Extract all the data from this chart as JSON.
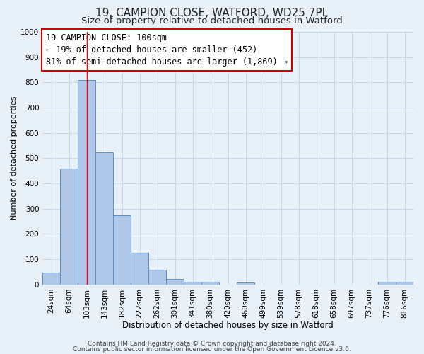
{
  "title1": "19, CAMPION CLOSE, WATFORD, WD25 7PL",
  "title2": "Size of property relative to detached houses in Watford",
  "xlabel": "Distribution of detached houses by size in Watford",
  "ylabel": "Number of detached properties",
  "bin_labels": [
    "24sqm",
    "64sqm",
    "103sqm",
    "143sqm",
    "182sqm",
    "222sqm",
    "262sqm",
    "301sqm",
    "341sqm",
    "380sqm",
    "420sqm",
    "460sqm",
    "499sqm",
    "539sqm",
    "578sqm",
    "618sqm",
    "658sqm",
    "697sqm",
    "737sqm",
    "776sqm",
    "816sqm"
  ],
  "bar_values": [
    47,
    460,
    810,
    525,
    275,
    125,
    58,
    22,
    12,
    10,
    0,
    8,
    0,
    0,
    0,
    0,
    0,
    0,
    0,
    10,
    10
  ],
  "bar_color": "#aec6e8",
  "bar_edgecolor": "#5a8fc4",
  "red_line_index": 2,
  "annotation_title": "19 CAMPION CLOSE: 100sqm",
  "annotation_line2": "← 19% of detached houses are smaller (452)",
  "annotation_line3": "81% of semi-detached houses are larger (1,869) →",
  "annotation_box_edgecolor": "#cc0000",
  "annotation_box_facecolor": "#ffffff",
  "ylim": [
    0,
    1000
  ],
  "yticks": [
    0,
    100,
    200,
    300,
    400,
    500,
    600,
    700,
    800,
    900,
    1000
  ],
  "grid_color": "#c8d8ea",
  "background_color": "#e8f0f8",
  "footer1": "Contains HM Land Registry data © Crown copyright and database right 2024.",
  "footer2": "Contains public sector information licensed under the Open Government Licence v3.0.",
  "title1_fontsize": 11,
  "title2_fontsize": 9.5,
  "xlabel_fontsize": 8.5,
  "ylabel_fontsize": 8,
  "tick_fontsize": 7.5,
  "annotation_fontsize": 8.5,
  "footer_fontsize": 6.5
}
